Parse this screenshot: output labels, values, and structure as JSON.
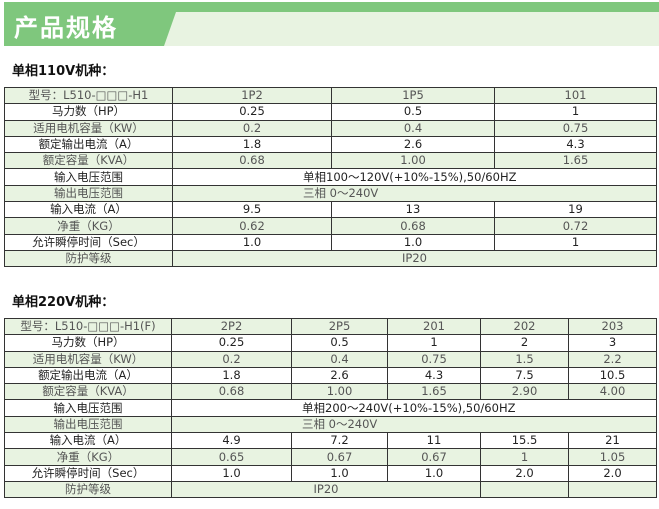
{
  "title": "产品规格",
  "colors": {
    "banner": "#7fc77d",
    "shade": "#e8f3e1"
  },
  "t1": {
    "heading": "单相110V机种：",
    "model_label": "型号：L510-□□□-H1",
    "models": [
      "1P2",
      "1P5",
      "101"
    ],
    "rows": [
      {
        "label": "马力数（HP）",
        "values": [
          "0.25",
          "0.5",
          "1"
        ]
      },
      {
        "label": "适用电机容量（KW）",
        "values": [
          "0.2",
          "0.4",
          "0.75"
        ]
      },
      {
        "label": "额定输出电流（A）",
        "values": [
          "1.8",
          "2.6",
          "4.3"
        ]
      },
      {
        "label": "额定容量（KVA）",
        "values": [
          "0.68",
          "1.00",
          "1.65"
        ]
      }
    ],
    "input_voltage": {
      "label": "输入电压范围",
      "value": "单相100～120V(+10%-15%),50/60HZ"
    },
    "output_voltage": {
      "label": "输出电压范围",
      "value": "三相 0～240V"
    },
    "rows2": [
      {
        "label": "输入电流（A）",
        "values": [
          "9.5",
          "13",
          "19"
        ]
      },
      {
        "label": "净重（KG）",
        "values": [
          "0.62",
          "0.68",
          "0.72"
        ]
      },
      {
        "label": "允许瞬停时间（Sec）",
        "values": [
          "1.0",
          "1.0",
          "1"
        ]
      }
    ],
    "protection": {
      "label": "防护等级",
      "value": "IP20"
    }
  },
  "t2": {
    "heading": "单相220V机种：",
    "model_label": "型号：L510-□□□-H1(F)",
    "models": [
      "2P2",
      "2P5",
      "201",
      "202",
      "203"
    ],
    "rows": [
      {
        "label": "马力数（HP）",
        "values": [
          "0.25",
          "0.5",
          "1",
          "2",
          "3"
        ]
      },
      {
        "label": "适用电机容量（KW）",
        "values": [
          "0.2",
          "0.4",
          "0.75",
          "1.5",
          "2.2"
        ]
      },
      {
        "label": "额定输出电流（A）",
        "values": [
          "1.8",
          "2.6",
          "4.3",
          "7.5",
          "10.5"
        ]
      },
      {
        "label": "额定容量（KVA）",
        "values": [
          "0.68",
          "1.00",
          "1.65",
          "2.90",
          "4.00"
        ]
      }
    ],
    "input_voltage": {
      "label": "输入电压范围",
      "value": "单相200～240V(+10%-15%),50/60HZ"
    },
    "output_voltage": {
      "label": "输出电压范围",
      "value": "三相 0～240V"
    },
    "rows2": [
      {
        "label": "输入电流（A）",
        "values": [
          "4.9",
          "7.2",
          "11",
          "15.5",
          "21"
        ]
      },
      {
        "label": "净重（KG）",
        "values": [
          "0.65",
          "0.67",
          "0.67",
          "1",
          "1.05"
        ]
      },
      {
        "label": "允许瞬停时间（Sec）",
        "values": [
          "1.0",
          "1.0",
          "1.0",
          "2.0",
          "2.0"
        ]
      }
    ],
    "protection": {
      "label": "防护等级",
      "value": "IP20"
    }
  }
}
